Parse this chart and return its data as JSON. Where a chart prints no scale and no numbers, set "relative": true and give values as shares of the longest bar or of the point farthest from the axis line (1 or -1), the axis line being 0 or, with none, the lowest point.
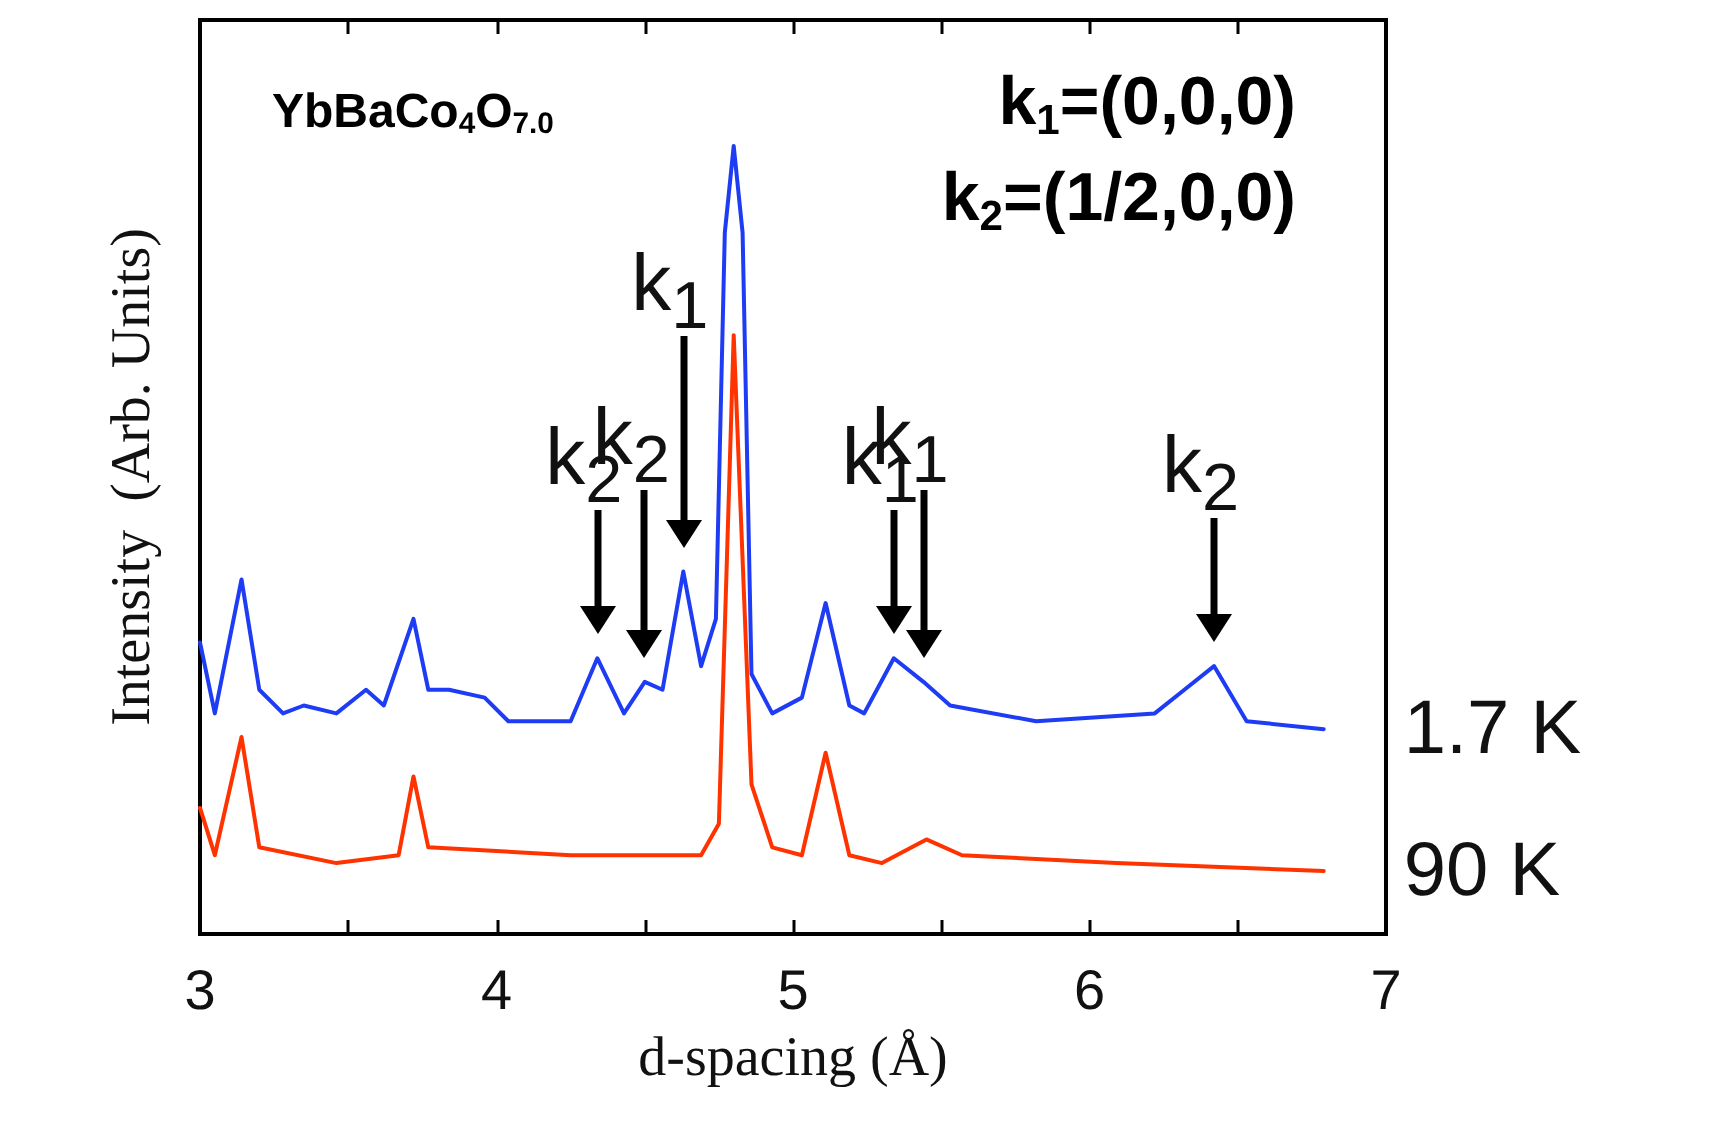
{
  "chart_data": {
    "type": "line",
    "title": "YbBaCo$_{4}$O$_{7.0}$",
    "xlabel": "d-spacing (Å)",
    "ylabel": "Intensity  (Arb. Units)",
    "relative": true,
    "xlim": [
      3,
      7
    ],
    "xticks": [
      3,
      {
        "value": 3.5,
        "label": null
      },
      4,
      {
        "value": 4.5,
        "label": null
      },
      5,
      {
        "value": 5.5,
        "label": null
      },
      6,
      {
        "value": 6.5,
        "label": null
      },
      7
    ],
    "grid": false,
    "legend": false,
    "marker": "none",
    "line_style": "solid",
    "annotations": [
      "k$_{1}$=(0,0,0)",
      "k$_{2}$=(1/2,0,0)",
      {
        "text": "k$_{2}$",
        "x": 4.34,
        "y": 0.35
      },
      {
        "text": "k$_{2}$",
        "x": 4.5,
        "y": 0.32
      },
      {
        "text": "k$_{1}$",
        "x": 4.63,
        "y": 0.46
      },
      {
        "text": "k$_{1}$",
        "x": 5.34,
        "y": 0.35
      },
      {
        "text": "k$_{1}$",
        "x": 5.44,
        "y": 0.32
      },
      {
        "text": "k$_{2}$",
        "x": 6.42,
        "y": 0.34
      }
    ],
    "series": [
      {
        "name": "1.7 K",
        "color": "#1f3cf5",
        "x": [
          3.0,
          3.05,
          3.14,
          3.2,
          3.28,
          3.35,
          3.46,
          3.56,
          3.62,
          3.72,
          3.77,
          3.84,
          3.96,
          4.04,
          4.25,
          4.34,
          4.43,
          4.5,
          4.56,
          4.63,
          4.69,
          4.74,
          4.77,
          4.8,
          4.83,
          4.86,
          4.93,
          5.03,
          5.11,
          5.19,
          5.24,
          5.34,
          5.44,
          5.53,
          5.82,
          6.22,
          6.32,
          6.42,
          6.53,
          6.79
        ],
        "values": [
          0.37,
          0.28,
          0.45,
          0.31,
          0.28,
          0.29,
          0.28,
          0.31,
          0.29,
          0.4,
          0.31,
          0.31,
          0.3,
          0.27,
          0.27,
          0.35,
          0.28,
          0.32,
          0.31,
          0.46,
          0.34,
          0.4,
          0.89,
          1.0,
          0.89,
          0.33,
          0.28,
          0.3,
          0.42,
          0.29,
          0.28,
          0.35,
          0.32,
          0.29,
          0.27,
          0.28,
          0.31,
          0.34,
          0.27,
          0.26
        ]
      },
      {
        "name": "90 K",
        "color": "#ff3300",
        "x": [
          3.0,
          3.05,
          3.14,
          3.2,
          3.46,
          3.67,
          3.72,
          3.77,
          4.25,
          4.69,
          4.75,
          4.8,
          4.86,
          4.93,
          5.03,
          5.11,
          5.19,
          5.3,
          5.45,
          5.57,
          6.09,
          6.79
        ],
        "values": [
          0.16,
          0.1,
          0.25,
          0.11,
          0.09,
          0.1,
          0.2,
          0.11,
          0.1,
          0.1,
          0.14,
          0.76,
          0.19,
          0.11,
          0.1,
          0.23,
          0.1,
          0.09,
          0.12,
          0.1,
          0.09,
          0.08
        ]
      }
    ]
  }
}
